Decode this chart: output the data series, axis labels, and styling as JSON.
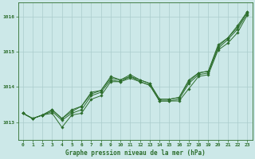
{
  "title": "Graphe pression niveau de la mer (hPa)",
  "background_color": "#cce8e8",
  "grid_color": "#aacccc",
  "line_color": "#2d6e2d",
  "xlim": [
    -0.5,
    23.5
  ],
  "ylim": [
    1012.5,
    1016.4
  ],
  "yticks": [
    1013,
    1014,
    1015,
    1016
  ],
  "xticks": [
    0,
    1,
    2,
    3,
    4,
    5,
    6,
    7,
    8,
    9,
    10,
    11,
    12,
    13,
    14,
    15,
    16,
    17,
    18,
    19,
    20,
    21,
    22,
    23
  ],
  "series": [
    [
      1013.25,
      1013.1,
      1013.2,
      1013.25,
      1012.85,
      1013.2,
      1013.25,
      1013.65,
      1013.75,
      1014.15,
      1014.15,
      1014.25,
      1014.15,
      1014.05,
      1013.6,
      1013.6,
      1013.6,
      1013.95,
      1014.3,
      1014.35,
      1015.05,
      1015.25,
      1015.55,
      1016.05
    ],
    [
      1013.25,
      1013.1,
      1013.2,
      1013.3,
      1013.05,
      1013.25,
      1013.35,
      1013.75,
      1013.85,
      1014.2,
      1014.15,
      1014.3,
      1014.15,
      1014.05,
      1013.6,
      1013.6,
      1013.65,
      1014.1,
      1014.35,
      1014.4,
      1015.1,
      1015.35,
      1015.65,
      1016.1
    ],
    [
      1013.25,
      1013.1,
      1013.2,
      1013.35,
      1013.1,
      1013.3,
      1013.45,
      1013.8,
      1013.9,
      1014.25,
      1014.2,
      1014.3,
      1014.2,
      1014.1,
      1013.65,
      1013.65,
      1013.7,
      1014.15,
      1014.4,
      1014.45,
      1015.15,
      1015.4,
      1015.7,
      1016.15
    ],
    [
      1013.25,
      1013.1,
      1013.2,
      1013.35,
      1013.1,
      1013.35,
      1013.45,
      1013.85,
      1013.9,
      1014.3,
      1014.2,
      1014.35,
      1014.2,
      1014.1,
      1013.65,
      1013.65,
      1013.7,
      1014.2,
      1014.4,
      1014.45,
      1015.2,
      1015.4,
      1015.75,
      1016.15
    ]
  ]
}
